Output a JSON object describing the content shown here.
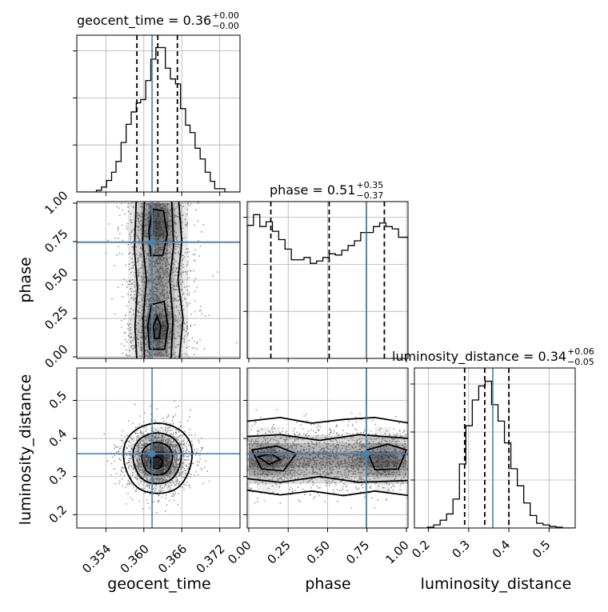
{
  "chart_data": {
    "type": "corner",
    "parameters": [
      "geocent_time",
      "phase",
      "luminosity_distance"
    ],
    "truths": {
      "geocent_time": 0.3613,
      "phase": 0.745,
      "luminosity_distance": 0.36
    },
    "colors": {
      "truth": "#4682b4",
      "hist": "#000000",
      "density": "#000000",
      "scatter": "#9a9a9a"
    },
    "grid": true,
    "titles": [
      {
        "param": "geocent_time",
        "text": "geocent_time = 0.36",
        "sup": "+0.00",
        "sub": "−0.00"
      },
      {
        "param": "phase",
        "text": "phase = 0.51",
        "sup": "+0.35",
        "sub": "−0.37"
      },
      {
        "param": "luminosity_distance",
        "text": "luminosity_distance = 0.34",
        "sup": "+0.06",
        "sub": "−0.05"
      }
    ],
    "axis_labels": {
      "x": [
        "geocent_time",
        "phase",
        "luminosity_distance"
      ],
      "y": [
        "phase",
        "luminosity_distance"
      ]
    },
    "ranges": {
      "geocent_time": [
        0.3494,
        0.3752
      ],
      "phase": [
        -0.01,
        1.01
      ],
      "luminosity_distance": [
        0.165,
        0.585
      ],
      "luminosity_distance_diag": [
        0.165,
        0.565
      ]
    },
    "ticks": {
      "geocent_time": [
        "0.354",
        "0.360",
        "0.366",
        "0.372"
      ],
      "phase": [
        "0.00",
        "0.25",
        "0.50",
        "0.75",
        "1.00"
      ],
      "luminosity_distance_y": [
        "0.2",
        "0.3",
        "0.4",
        "0.5"
      ],
      "luminosity_distance_x": [
        "0.2",
        "0.3",
        "0.4",
        "0.5"
      ]
    },
    "marginals": [
      {
        "param": "geocent_time",
        "quantiles": [
          0.3589,
          0.3622,
          0.3653
        ],
        "bins": [
          0.3494,
          0.3502,
          0.351,
          0.3517,
          0.3525,
          0.3533,
          0.3541,
          0.3549,
          0.3556,
          0.3564,
          0.3572,
          0.358,
          0.3588,
          0.3595,
          0.3603,
          0.3611,
          0.3619,
          0.3627,
          0.3634,
          0.3642,
          0.365,
          0.3658,
          0.3666,
          0.3673,
          0.3681,
          0.3689,
          0.3697,
          0.3705,
          0.3712,
          0.372,
          0.3728,
          0.3736,
          0.3744,
          0.3752
        ],
        "counts": [
          0,
          0,
          0,
          0,
          2,
          6,
          14,
          24,
          37,
          60,
          82,
          97,
          108,
          112,
          135,
          161,
          175,
          175,
          150,
          137,
          131,
          101,
          81,
          72,
          53,
          40,
          24,
          13,
          4,
          4,
          0,
          0,
          0
        ]
      },
      {
        "param": "phase",
        "quantiles": [
          0.14,
          0.51,
          0.86
        ],
        "bins": [
          -0.01,
          0.03,
          0.07,
          0.11,
          0.15,
          0.19,
          0.23,
          0.27,
          0.31,
          0.35,
          0.39,
          0.43,
          0.47,
          0.51,
          0.55,
          0.59,
          0.63,
          0.67,
          0.71,
          0.75,
          0.79,
          0.83,
          0.87,
          0.91,
          0.95,
          0.99,
          1.01
        ],
        "counts": [
          112,
          121,
          111,
          115,
          107,
          100,
          92,
          83,
          83,
          85,
          80,
          82,
          85,
          88,
          87,
          91,
          95,
          99,
          106,
          106,
          111,
          114,
          111,
          109,
          102,
          102
        ]
      },
      {
        "param": "luminosity_distance",
        "quantiles": [
          0.29,
          0.34,
          0.4
        ],
        "bins": [
          0.165,
          0.181,
          0.197,
          0.213,
          0.229,
          0.245,
          0.261,
          0.277,
          0.293,
          0.309,
          0.325,
          0.341,
          0.357,
          0.373,
          0.389,
          0.405,
          0.421,
          0.437,
          0.453,
          0.469,
          0.485,
          0.501,
          0.517,
          0.533,
          0.549,
          0.565
        ],
        "counts": [
          0,
          0,
          1,
          4,
          10,
          18,
          37,
          82,
          131,
          164,
          182,
          188,
          158,
          137,
          109,
          76,
          54,
          32,
          16,
          6,
          4,
          2,
          1,
          0,
          0
        ]
      }
    ]
  }
}
